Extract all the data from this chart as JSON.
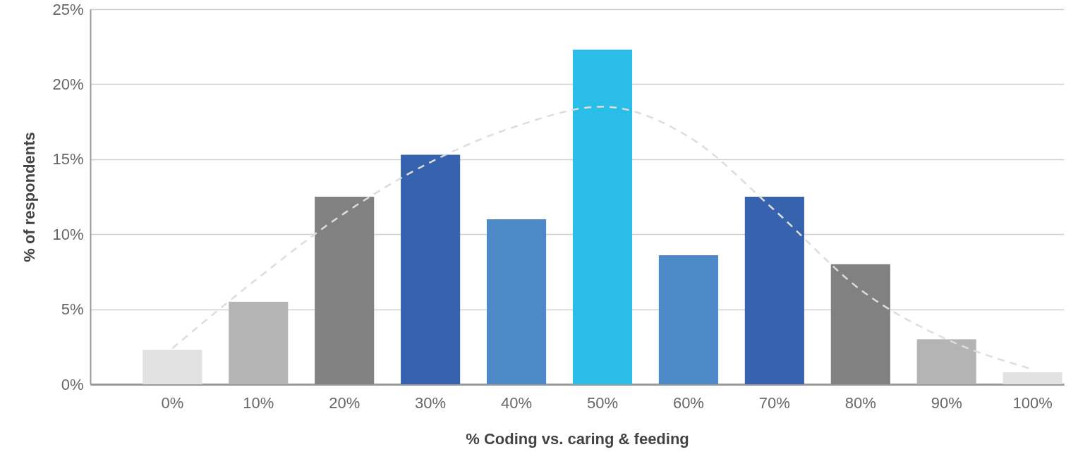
{
  "chart_data": {
    "type": "bar",
    "xlabel": "% Coding vs. caring & feeding",
    "ylabel": "% of respondents",
    "categories": [
      "0%",
      "10%",
      "20%",
      "30%",
      "40%",
      "50%",
      "60%",
      "70%",
      "80%",
      "90%",
      "100%"
    ],
    "series": [
      {
        "values": [
          2.3,
          5.5,
          12.5,
          15.3,
          11.0,
          22.3,
          8.6,
          12.5,
          8.0,
          3.0,
          0.8
        ],
        "colors": [
          "#e1e2e1",
          "#b3b4b3",
          "#808180",
          "#3763ae",
          "#4e89c7",
          "#2abde8",
          "#4e89c7",
          "#3763ae",
          "#808180",
          "#b3b4b3",
          "#e1e2e1"
        ]
      },
      {
        "type": "line",
        "color": "#dcdddc",
        "line_style": "dashed",
        "values": [
          2.4,
          7.1,
          11.4,
          14.8,
          17.2,
          18.5,
          16.5,
          11.6,
          6.3,
          3.0,
          1.0
        ]
      }
    ],
    "ylim": [
      0,
      25
    ],
    "yticks": [
      {
        "value": 0,
        "label": "0%"
      },
      {
        "value": 5,
        "label": "5%"
      },
      {
        "value": 10,
        "label": "10%"
      },
      {
        "value": 15,
        "label": "15%"
      },
      {
        "value": 20,
        "label": "20%"
      },
      {
        "value": 25,
        "label": "25%"
      }
    ],
    "grid": "y"
  }
}
